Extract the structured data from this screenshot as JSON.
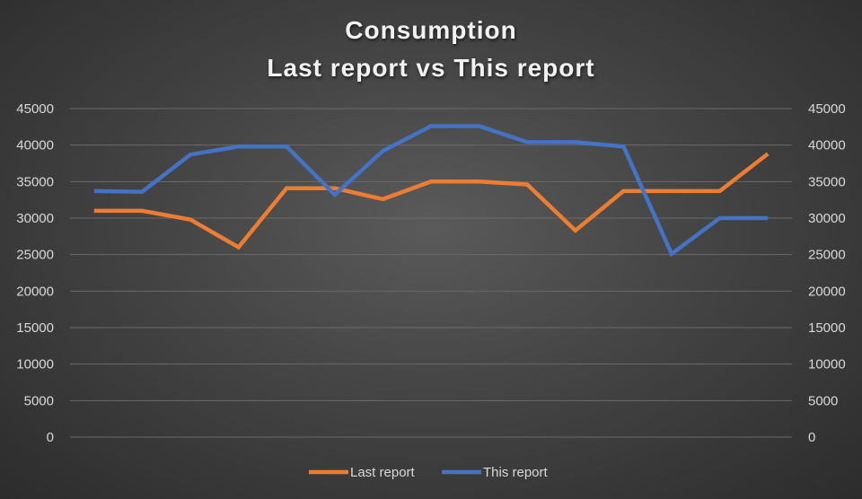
{
  "chart_data": {
    "type": "line",
    "title": "Consumption",
    "subtitle": "Last report vs This report",
    "ylim": [
      0,
      45000
    ],
    "y_ticks": [
      0,
      5000,
      10000,
      15000,
      20000,
      25000,
      30000,
      35000,
      40000,
      45000
    ],
    "secondary_ylim": [
      0,
      45000
    ],
    "grid": true,
    "legend_position": "bottom",
    "x_count": 15,
    "series": [
      {
        "name": "Last report",
        "color": "#ed7d31",
        "values": [
          31000,
          31000,
          29800,
          26000,
          34100,
          34100,
          32600,
          35000,
          35000,
          34600,
          28300,
          33700,
          33700,
          33700,
          38800
        ]
      },
      {
        "name": "This report",
        "color": "#4472c4",
        "values": [
          33700,
          33600,
          38700,
          39800,
          39800,
          33200,
          39200,
          42600,
          42600,
          40400,
          40400,
          39800,
          25100,
          30000,
          30000
        ]
      }
    ]
  }
}
